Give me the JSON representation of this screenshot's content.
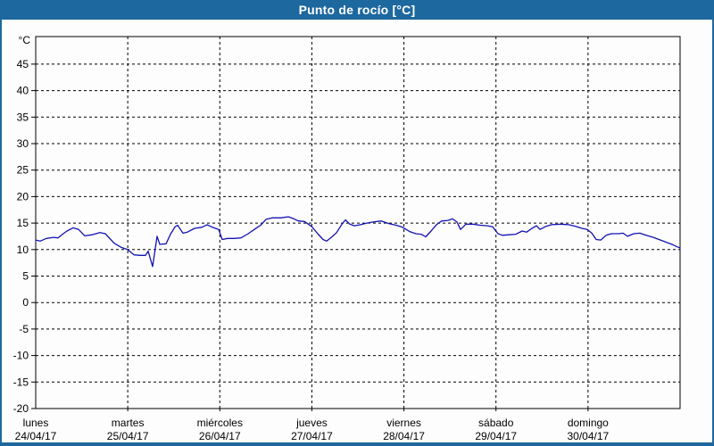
{
  "window": {
    "title": "Punto de rocío [°C]"
  },
  "colors": {
    "frame_border": "#1d689e",
    "titlebar_bg": "#1d689e",
    "titlebar_text": "#ffffff",
    "chart_bg": "#fdfdfd",
    "line": "#1212b2",
    "grid": "#000000",
    "axis": "#000000",
    "label_text": "#000000"
  },
  "chart_data": {
    "type": "line",
    "title": "Punto de rocío [°C]",
    "ylabel": "°C",
    "ylim": [
      -20,
      50.2
    ],
    "y_ticks": [
      45,
      40,
      35,
      30,
      25,
      20,
      15,
      10,
      5,
      0,
      -5,
      -10,
      -15,
      -20
    ],
    "grid": "dashed horizontal and vertical (day boundaries)",
    "legend_position": "none",
    "x_days": [
      {
        "name": "lunes",
        "date": "24/04/17"
      },
      {
        "name": "martes",
        "date": "25/04/17"
      },
      {
        "name": "miércoles",
        "date": "26/04/17"
      },
      {
        "name": "jueves",
        "date": "27/04/17"
      },
      {
        "name": "viernes",
        "date": "28/04/17"
      },
      {
        "name": "sábado",
        "date": "29/04/17"
      },
      {
        "name": "domingo",
        "date": "30/04/17"
      }
    ],
    "x_range_days": [
      0,
      7
    ],
    "series": [
      {
        "name": "Punto de rocío",
        "x": [
          0.0,
          0.048,
          0.116,
          0.194,
          0.242,
          0.291,
          0.339,
          0.407,
          0.465,
          0.533,
          0.611,
          0.698,
          0.756,
          0.853,
          0.931,
          1.0,
          1.067,
          1.134,
          1.193,
          1.222,
          1.27,
          1.319,
          1.348,
          1.416,
          1.464,
          1.513,
          1.542,
          1.6,
          1.648,
          1.726,
          1.803,
          1.862,
          1.92,
          1.988,
          2.026,
          2.085,
          2.153,
          2.23,
          2.308,
          2.375,
          2.443,
          2.502,
          2.569,
          2.666,
          2.744,
          2.792,
          2.851,
          2.919,
          2.996,
          3.064,
          3.122,
          3.161,
          3.219,
          3.268,
          3.326,
          3.365,
          3.413,
          3.462,
          3.529,
          3.597,
          3.665,
          3.752,
          3.839,
          3.917,
          3.985,
          4.062,
          4.13,
          4.188,
          4.237,
          4.295,
          4.353,
          4.411,
          4.479,
          4.528,
          4.576,
          4.615,
          4.673,
          4.751,
          4.828,
          4.906,
          4.964,
          5.022,
          5.071,
          5.139,
          5.216,
          5.284,
          5.333,
          5.391,
          5.44,
          5.478,
          5.546,
          5.604,
          5.701,
          5.789,
          5.866,
          5.934,
          5.992,
          6.041,
          6.089,
          6.138,
          6.196,
          6.254,
          6.332,
          6.38,
          6.429,
          6.496,
          6.564,
          6.632,
          6.709,
          6.787,
          6.864,
          6.922,
          6.971,
          7.0
        ],
        "values": [
          11.8,
          11.6,
          12.1,
          12.3,
          12.2,
          12.9,
          13.5,
          14.1,
          13.8,
          12.6,
          12.8,
          13.2,
          13.0,
          11.2,
          10.4,
          10.0,
          9.0,
          8.9,
          8.9,
          9.7,
          6.8,
          12.5,
          11.0,
          11.1,
          12.9,
          14.3,
          14.6,
          13.1,
          13.3,
          14.0,
          14.2,
          14.7,
          14.2,
          13.8,
          11.9,
          12.1,
          12.1,
          12.2,
          13.0,
          13.8,
          14.6,
          15.7,
          16.0,
          16.0,
          16.2,
          15.9,
          15.4,
          15.3,
          14.4,
          13.0,
          11.9,
          11.6,
          12.4,
          13.2,
          14.8,
          15.6,
          14.8,
          14.5,
          14.7,
          15.0,
          15.2,
          15.4,
          14.9,
          14.6,
          14.2,
          13.4,
          13.0,
          12.9,
          12.4,
          13.5,
          14.7,
          15.4,
          15.5,
          15.8,
          15.2,
          13.8,
          14.8,
          14.8,
          14.6,
          14.5,
          14.3,
          13.0,
          12.7,
          12.8,
          12.9,
          13.5,
          13.3,
          14.0,
          14.5,
          13.8,
          14.4,
          14.7,
          14.8,
          14.7,
          14.4,
          14.0,
          13.8,
          13.1,
          11.9,
          11.8,
          12.7,
          13.0,
          13.0,
          13.1,
          12.5,
          13.0,
          13.1,
          12.7,
          12.3,
          11.8,
          11.3,
          10.9,
          10.5,
          10.3
        ]
      }
    ]
  }
}
